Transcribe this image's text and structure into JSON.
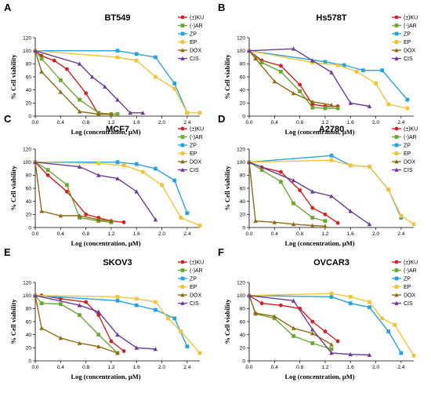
{
  "colors": {
    "KU": "#d42020",
    "AR": "#6ea832",
    "ZP": "#27a4dd",
    "EP": "#f0c53a",
    "DOX": "#8b6c12",
    "CIS": "#6a3d98"
  },
  "chart_data": [
    {
      "type": "line",
      "panel": "A",
      "title": "BT549",
      "xlabel": "Log (concentration, μM)",
      "ylabel": "% Cell viability",
      "xlim": [
        0,
        2.6
      ],
      "ylim": [
        0,
        120
      ],
      "xticks": [
        "0.0",
        "0.4",
        "0.8",
        "1.2",
        "1.6",
        "2.0",
        "2.4"
      ],
      "yticks": [
        "0",
        "20",
        "40",
        "60",
        "80",
        "100",
        "120"
      ],
      "series": [
        {
          "name": "(±)KU",
          "x": [
            0,
            0.1,
            0.3,
            0.5,
            0.8,
            1.0,
            1.3
          ],
          "y": [
            100,
            92,
            85,
            72,
            35,
            3,
            3
          ]
        },
        {
          "name": "(-)AR",
          "x": [
            0,
            0.1,
            0.4,
            0.7,
            1.0,
            1.2,
            1.3
          ],
          "y": [
            100,
            88,
            55,
            25,
            5,
            3,
            3
          ]
        },
        {
          "name": "ZP",
          "x": [
            0,
            1.3,
            1.6,
            1.9,
            2.2,
            2.4
          ],
          "y": [
            100,
            100,
            95,
            90,
            50,
            5
          ]
        },
        {
          "name": "EP",
          "x": [
            0,
            1.3,
            1.6,
            1.9,
            2.2,
            2.4,
            2.6
          ],
          "y": [
            100,
            90,
            85,
            60,
            42,
            5,
            5
          ]
        },
        {
          "name": "DOX",
          "x": [
            0,
            0.1,
            0.4,
            0.7,
            1.0,
            1.2
          ],
          "y": [
            100,
            68,
            37,
            7,
            3,
            3
          ]
        },
        {
          "name": "CIS",
          "x": [
            0,
            0.7,
            0.9,
            1.1,
            1.3,
            1.5,
            1.7
          ],
          "y": [
            100,
            80,
            60,
            45,
            25,
            5,
            5
          ]
        }
      ]
    },
    {
      "type": "line",
      "panel": "B",
      "title": "Hs578T",
      "xlabel": "Log (concentration, μM)",
      "ylabel": "% Cell viability",
      "xlim": [
        0,
        2.6
      ],
      "ylim": [
        0,
        120
      ],
      "xticks": [
        "0.0",
        "0.4",
        "0.8",
        "1.2",
        "1.6",
        "2.0",
        "2.4"
      ],
      "yticks": [
        "0",
        "20",
        "40",
        "60",
        "80",
        "100",
        "120"
      ],
      "series": [
        {
          "name": "(±)KU",
          "x": [
            0,
            0.2,
            0.5,
            0.8,
            1.0,
            1.2,
            1.4
          ],
          "y": [
            100,
            85,
            77,
            48,
            18,
            15,
            15
          ]
        },
        {
          "name": "(-)AR",
          "x": [
            0,
            0.2,
            0.5,
            0.8,
            1.0,
            1.2,
            1.4
          ],
          "y": [
            100,
            82,
            68,
            38,
            13,
            12,
            12
          ]
        },
        {
          "name": "ZP",
          "x": [
            0,
            1.2,
            1.5,
            1.8,
            2.1,
            2.5
          ],
          "y": [
            100,
            83,
            78,
            70,
            70,
            25
          ]
        },
        {
          "name": "EP",
          "x": [
            0,
            1.0,
            1.4,
            1.7,
            2.0,
            2.2,
            2.5
          ],
          "y": [
            100,
            82,
            78,
            68,
            50,
            18,
            12
          ]
        },
        {
          "name": "DOX",
          "x": [
            0,
            0.1,
            0.4,
            0.7,
            1.0,
            1.3
          ],
          "y": [
            100,
            88,
            53,
            35,
            22,
            17
          ]
        },
        {
          "name": "CIS",
          "x": [
            0,
            0.7,
            1.0,
            1.3,
            1.6,
            1.9
          ],
          "y": [
            100,
            103,
            85,
            67,
            20,
            15
          ]
        }
      ]
    },
    {
      "type": "line",
      "panel": "C",
      "title": "MCF7",
      "xlabel": "Log (concentration, μM)",
      "ylabel": "% Cell viability",
      "xlim": [
        0,
        2.6
      ],
      "ylim": [
        0,
        120
      ],
      "xticks": [
        "0.0",
        "0.4",
        "0.8",
        "1.2",
        "1.6",
        "2.0",
        "2.4"
      ],
      "yticks": [
        "0",
        "20",
        "40",
        "60",
        "80",
        "100",
        "120"
      ],
      "series": [
        {
          "name": "(±)KU",
          "x": [
            0,
            0.2,
            0.5,
            0.8,
            1.0,
            1.2,
            1.4
          ],
          "y": [
            100,
            80,
            55,
            20,
            15,
            10,
            8
          ]
        },
        {
          "name": "(-)AR",
          "x": [
            0,
            0.2,
            0.5,
            0.7,
            1.0,
            1.2
          ],
          "y": [
            100,
            88,
            65,
            15,
            10,
            8
          ]
        },
        {
          "name": "ZP",
          "x": [
            0,
            1.3,
            1.6,
            1.9,
            2.2,
            2.4
          ],
          "y": [
            100,
            100,
            97,
            90,
            72,
            22
          ]
        },
        {
          "name": "EP",
          "x": [
            0,
            1.0,
            1.4,
            1.7,
            2.0,
            2.3,
            2.6
          ],
          "y": [
            100,
            98,
            95,
            85,
            65,
            15,
            3
          ]
        },
        {
          "name": "DOX",
          "x": [
            0,
            0.1,
            0.4,
            0.7,
            1.0,
            1.2
          ],
          "y": [
            100,
            25,
            18,
            18,
            12,
            10
          ]
        },
        {
          "name": "CIS",
          "x": [
            0,
            0.7,
            1.0,
            1.3,
            1.6,
            1.9
          ],
          "y": [
            100,
            93,
            80,
            75,
            55,
            12
          ]
        }
      ]
    },
    {
      "type": "line",
      "panel": "D",
      "title": "A2780",
      "xlabel": "Log (concentration, μM)",
      "ylabel": "% Cell viability",
      "xlim": [
        0,
        2.6
      ],
      "ylim": [
        0,
        120
      ],
      "xticks": [
        "0.0",
        "0.4",
        "0.8",
        "1.2",
        "1.6",
        "2.0",
        "2.4"
      ],
      "yticks": [
        "0",
        "20",
        "40",
        "60",
        "80",
        "100",
        "120"
      ],
      "series": [
        {
          "name": "(±)KU",
          "x": [
            0,
            0.2,
            0.5,
            0.8,
            1.0,
            1.2,
            1.4
          ],
          "y": [
            100,
            92,
            85,
            57,
            30,
            20,
            7
          ]
        },
        {
          "name": "(-)AR",
          "x": [
            0,
            0.2,
            0.5,
            0.7,
            1.0,
            1.2
          ],
          "y": [
            100,
            88,
            70,
            37,
            15,
            10
          ]
        },
        {
          "name": "ZP",
          "x": [
            0,
            1.3,
            1.6,
            1.9,
            2.2,
            2.4
          ],
          "y": [
            100,
            110,
            95,
            93,
            58,
            15
          ]
        },
        {
          "name": "EP",
          "x": [
            0,
            1.3,
            1.6,
            1.9,
            2.2,
            2.4,
            2.6
          ],
          "y": [
            100,
            103,
            95,
            93,
            58,
            18,
            5
          ]
        },
        {
          "name": "DOX",
          "x": [
            0,
            0.1,
            0.4,
            0.7,
            1.0,
            1.2
          ],
          "y": [
            100,
            10,
            8,
            5,
            3,
            2
          ]
        },
        {
          "name": "CIS",
          "x": [
            0,
            0.7,
            1.0,
            1.3,
            1.6,
            1.9
          ],
          "y": [
            100,
            72,
            55,
            48,
            25,
            5
          ]
        }
      ]
    },
    {
      "type": "line",
      "panel": "E",
      "title": "SKOV3",
      "xlabel": "Log (concentration, μM)",
      "ylabel": "% Cell viability",
      "xlim": [
        0,
        2.6
      ],
      "ylim": [
        0,
        120
      ],
      "xticks": [
        "0.0",
        "0.4",
        "0.8",
        "1.2",
        "1.6",
        "2.0",
        "2.4"
      ],
      "yticks": [
        "0",
        "20",
        "40",
        "60",
        "80",
        "100",
        "120"
      ],
      "series": [
        {
          "name": "(±)KU",
          "x": [
            0,
            0.1,
            0.4,
            0.8,
            1.0,
            1.2,
            1.4
          ],
          "y": [
            100,
            100,
            95,
            90,
            70,
            30,
            15
          ]
        },
        {
          "name": "(-)AR",
          "x": [
            0,
            0.1,
            0.4,
            0.7,
            1.0,
            1.3
          ],
          "y": [
            100,
            88,
            87,
            70,
            40,
            12
          ]
        },
        {
          "name": "ZP",
          "x": [
            0,
            1.3,
            1.6,
            1.9,
            2.2,
            2.4
          ],
          "y": [
            100,
            92,
            85,
            78,
            65,
            22
          ]
        },
        {
          "name": "EP",
          "x": [
            0,
            1.3,
            1.6,
            1.9,
            2.1,
            2.3,
            2.6
          ],
          "y": [
            100,
            98,
            95,
            90,
            65,
            45,
            12
          ]
        },
        {
          "name": "DOX",
          "x": [
            0,
            0.1,
            0.4,
            0.7,
            1.0,
            1.3
          ],
          "y": [
            100,
            50,
            35,
            27,
            22,
            12
          ]
        },
        {
          "name": "CIS",
          "x": [
            0,
            0.7,
            1.0,
            1.3,
            1.6,
            1.9
          ],
          "y": [
            100,
            85,
            75,
            40,
            20,
            18
          ]
        }
      ]
    },
    {
      "type": "line",
      "panel": "F",
      "title": "OVCAR3",
      "xlabel": "Log (concentration, μM)",
      "ylabel": "% Cell viability",
      "xlim": [
        0,
        2.6
      ],
      "ylim": [
        0,
        120
      ],
      "xticks": [
        "0.0",
        "0.4",
        "0.8",
        "1.2",
        "1.6",
        "2.0",
        "2.4"
      ],
      "yticks": [
        "0",
        "20",
        "40",
        "60",
        "80",
        "100",
        "120"
      ],
      "series": [
        {
          "name": "(±)KU",
          "x": [
            0,
            0.2,
            0.5,
            0.8,
            1.0,
            1.2,
            1.4
          ],
          "y": [
            100,
            88,
            85,
            80,
            60,
            45,
            30
          ]
        },
        {
          "name": "(-)AR",
          "x": [
            0,
            0.1,
            0.4,
            0.7,
            1.0,
            1.3
          ],
          "y": [
            100,
            72,
            65,
            38,
            27,
            18
          ]
        },
        {
          "name": "ZP",
          "x": [
            0,
            1.3,
            1.6,
            1.9,
            2.2,
            2.4
          ],
          "y": [
            100,
            98,
            88,
            82,
            45,
            12
          ]
        },
        {
          "name": "EP",
          "x": [
            0,
            1.3,
            1.6,
            1.9,
            2.1,
            2.3,
            2.6
          ],
          "y": [
            100,
            103,
            98,
            90,
            65,
            55,
            8
          ]
        },
        {
          "name": "DOX",
          "x": [
            0,
            0.1,
            0.4,
            0.7,
            1.0,
            1.3
          ],
          "y": [
            100,
            73,
            68,
            50,
            42,
            25
          ]
        },
        {
          "name": "CIS",
          "x": [
            0,
            0.7,
            1.0,
            1.3,
            1.6,
            1.9
          ],
          "y": [
            100,
            92,
            48,
            12,
            10,
            9
          ]
        }
      ]
    }
  ]
}
